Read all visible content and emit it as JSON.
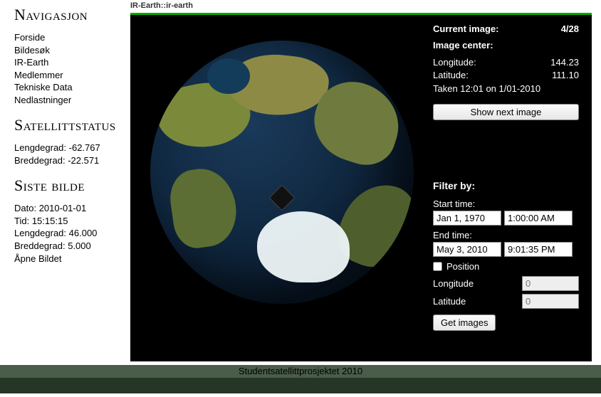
{
  "sidebar": {
    "nav_heading": "Navigasjon",
    "nav_items": [
      "Forside",
      "Bildesøk",
      "IR-Earth",
      "Medlemmer",
      "Tekniske Data",
      "Nedlastninger"
    ],
    "status_heading": "Satellittstatus",
    "status": {
      "longitude_label": "Lengdegrad:",
      "longitude_value": "-62.767",
      "latitude_label": "Breddegrad:",
      "latitude_value": "-22.571"
    },
    "last_heading": "Siste bilde",
    "last": {
      "date_label": "Dato:",
      "date_value": "2010-01-01",
      "time_label": "Tid:",
      "time_value": "15:15:15",
      "lng_label": "Lengdegrad:",
      "lng_value": "46.000",
      "lat_label": "Breddegrad:",
      "lat_value": "5.000",
      "open_label": "Åpne Bildet"
    }
  },
  "breadcrumb": "IR-Earth::ir-earth",
  "viewer": {
    "current_label": "Current image:",
    "current_value": "4/28",
    "center_label": "Image center:",
    "longitude_label": "Longitude:",
    "longitude_value": "144.23",
    "latitude_label": "Latitude:",
    "latitude_value": "111.10",
    "taken": "Taken 12:01 on 1/01-2010",
    "next_button": "Show next image"
  },
  "filter": {
    "header": "Filter by:",
    "start_label": "Start time:",
    "start_date": "Jan 1, 1970",
    "start_time": "1:00:00 AM",
    "end_label": "End time:",
    "end_date": "May 3, 2010",
    "end_time": "9:01:35 PM",
    "position_label": "Position",
    "lng_label": "Longitude",
    "lng_placeholder": "0",
    "lat_label": "Latitude",
    "lat_placeholder": "0",
    "get_button": "Get images"
  },
  "footer": "Studentsatellittprosjektet 2010",
  "colors": {
    "viewer_bg": "#000000",
    "accent_top": "#00aa00",
    "footer_bar1": "#4a5c4a",
    "footer_bar2": "#263626",
    "text_light": "#ffffff"
  }
}
